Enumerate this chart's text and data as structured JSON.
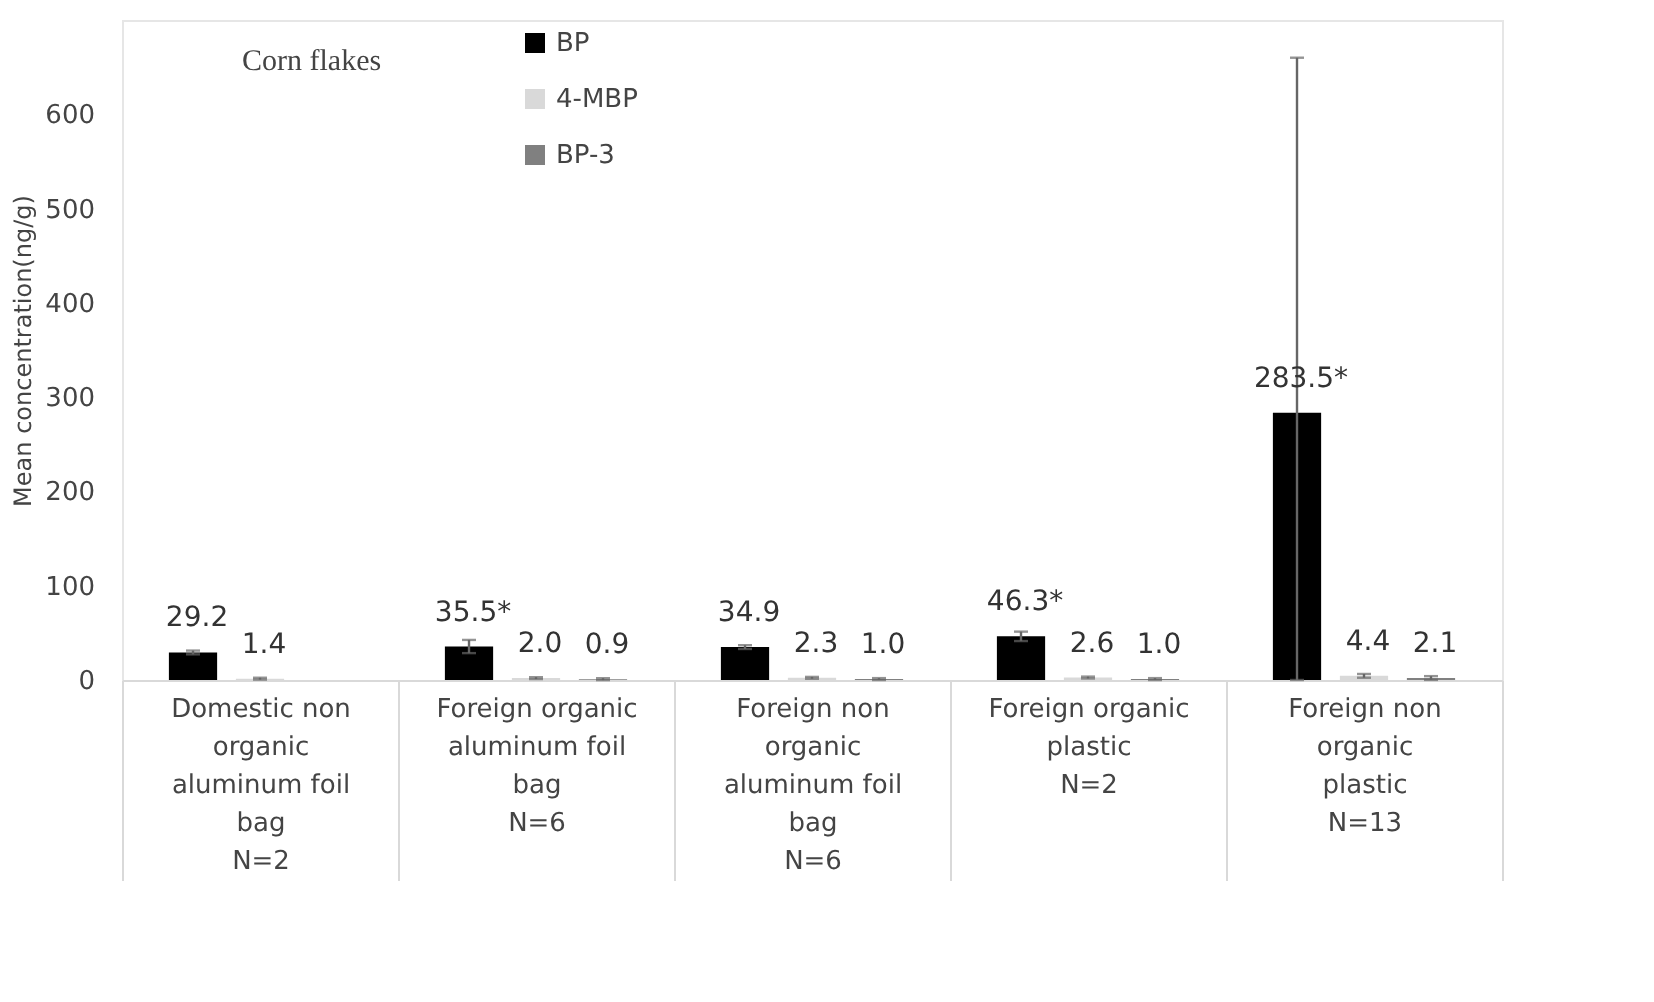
{
  "chart_data": {
    "type": "bar",
    "title": "Corn flakes",
    "ylabel": "Mean concentration(ng/g)",
    "categories": [
      "Domestic non\norganic\n\naluminum foil\nbag\n\nN=2",
      "Foreign organic\n\n\naluminum foil\nbag\n\nN=6",
      "Foreign non\norganic\n\naluminum foil\nbag\n\nN=6",
      "Foreign organic\n\n\nplastic\n\n\nN=2",
      "Foreign non\norganic\n\nplastic\n\n\nN=13"
    ],
    "series": [
      {
        "name": "BP",
        "color": "#000000",
        "values": [
          29.2,
          35.5,
          34.9,
          46.3,
          283.5
        ],
        "errors": [
          2,
          7,
          2,
          5,
          [
            0,
            660
          ]
        ],
        "value_labels": [
          "29.2",
          "35.5*",
          "34.9",
          "46.3*",
          "283.5*"
        ]
      },
      {
        "name": "4-MBP",
        "color": "#d9d9d9",
        "values": [
          1.4,
          2.0,
          2.3,
          2.6,
          4.4
        ],
        "errors": [
          1,
          1,
          1,
          1,
          2
        ],
        "value_labels": [
          "1.4",
          "2.0",
          "2.3",
          "2.6",
          "4.4"
        ]
      },
      {
        "name": "BP-3",
        "color": "#808080",
        "values": [
          null,
          0.9,
          1.0,
          1.0,
          2.1
        ],
        "errors": [
          null,
          1,
          1,
          1,
          2
        ],
        "value_labels": [
          null,
          "0.9",
          "1.0",
          "1.0",
          "2.1"
        ]
      }
    ],
    "ylim": [
      0,
      700
    ],
    "yticks": [
      0,
      100,
      200,
      300,
      400,
      500,
      600
    ],
    "grid": false,
    "legend": "top left"
  }
}
